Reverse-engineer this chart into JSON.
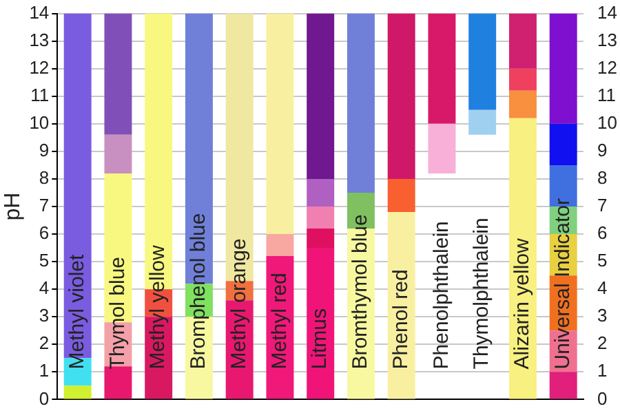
{
  "chart_data": {
    "type": "bar",
    "ylabel": "pH",
    "categories": [
      "Methyl violet",
      "Thymol blue",
      "Methyl yellow",
      "Bromphenol blue",
      "Methyl orange",
      "Methyl red",
      "Litmus",
      "Bromthymol blue",
      "Phenol red",
      "Phenolphthalein",
      "Thymolphthalein",
      "Alizarin yellow",
      "Universal Indicator"
    ],
    "ylim": [
      0,
      14
    ],
    "yticks": [
      0,
      1,
      2,
      3,
      4,
      5,
      6,
      7,
      8,
      9,
      10,
      11,
      12,
      13,
      14
    ],
    "y2lim": [
      0,
      14
    ],
    "y2ticks": [
      0,
      1,
      2,
      3,
      4,
      5,
      6,
      7,
      8,
      9,
      10,
      11,
      12,
      13,
      14
    ],
    "grid": "y",
    "legend": false,
    "series": [
      {
        "values": [
          0.5,
          1.2,
          3,
          3,
          3.6,
          5.2,
          5.5,
          6.2,
          6.8,
          1.8,
          0.9,
          10.2,
          1
        ],
        "base": [
          0,
          0,
          0,
          0,
          0,
          0,
          0,
          0,
          0,
          8.2,
          9.6,
          0,
          0
        ],
        "colors": [
          "#d0f030",
          "#e8186e",
          "#d81860",
          "#f8f8a0",
          "#e81870",
          "#f01878",
          "#f01478",
          "#f8f8a0",
          "#f8f0a0",
          "#f8b0d8",
          "#a0d0f0",
          "#f8f080",
          "#e0207a"
        ]
      },
      {
        "values": [
          1,
          1.6,
          1,
          1.2,
          0.7,
          0.8,
          0.7,
          1.3,
          1.2,
          4,
          3.5,
          1,
          1.5
        ],
        "base": [
          0.5,
          1.2,
          3,
          3,
          3.6,
          5.2,
          5.5,
          6.2,
          6.8,
          10,
          10.5,
          10.2,
          1
        ],
        "colors": [
          "#40e0f0",
          "#f4a0a8",
          "#f05040",
          "#80e060",
          "#f07040",
          "#f8a8a0",
          "#e01060",
          "#80c060",
          "#f86030",
          "#d81868",
          "#2080e0",
          "#f89040",
          "#f07090"
        ]
      },
      {
        "values": [
          12.5,
          5.4,
          10,
          9.8,
          9.7,
          8,
          0.8,
          6.5,
          6,
          null,
          null,
          0.8,
          2
        ],
        "base": [
          1.5,
          2.8,
          4,
          4.2,
          4.3,
          6,
          6.2,
          7.5,
          8,
          null,
          null,
          11.2,
          2.5
        ],
        "colors": [
          "#7a5ce0",
          "#f8f880",
          "#f8f880",
          "#7080d8",
          "#f0e8a0",
          "#f8f0a0",
          "#f080b0",
          "#7080d8",
          "#d01868",
          null,
          null,
          "#f04060",
          "#f07020"
        ]
      },
      {
        "values": [
          null,
          1.4,
          null,
          null,
          null,
          null,
          1,
          null,
          null,
          null,
          null,
          2,
          1.5
        ],
        "base": [
          null,
          8.2,
          null,
          null,
          null,
          null,
          7,
          null,
          null,
          null,
          null,
          12,
          4.5
        ],
        "colors": [
          null,
          "#c890c0",
          null,
          null,
          null,
          null,
          "#b060c0",
          null,
          null,
          null,
          null,
          "#d02070",
          "#e8d040"
        ]
      },
      {
        "values": [
          null,
          4.4,
          null,
          null,
          null,
          null,
          6,
          null,
          null,
          null,
          null,
          null,
          1
        ],
        "base": [
          null,
          9.6,
          null,
          null,
          null,
          null,
          8,
          null,
          null,
          null,
          null,
          null,
          6
        ],
        "colors": [
          null,
          "#8050b8",
          null,
          null,
          null,
          null,
          "#701890",
          null,
          null,
          null,
          null,
          null,
          "#80d080"
        ]
      },
      {
        "values": [
          null,
          null,
          null,
          null,
          null,
          null,
          null,
          null,
          null,
          null,
          null,
          null,
          1.5
        ],
        "base": [
          null,
          null,
          null,
          null,
          null,
          null,
          null,
          null,
          null,
          null,
          null,
          null,
          7
        ],
        "colors": [
          null,
          null,
          null,
          null,
          null,
          null,
          null,
          null,
          null,
          null,
          null,
          null,
          "#4070e0"
        ]
      },
      {
        "values": [
          null,
          null,
          null,
          null,
          null,
          null,
          null,
          null,
          null,
          null,
          null,
          null,
          1.5
        ],
        "base": [
          null,
          null,
          null,
          null,
          null,
          null,
          null,
          null,
          null,
          null,
          null,
          null,
          8.5
        ],
        "colors": [
          null,
          null,
          null,
          null,
          null,
          null,
          null,
          null,
          null,
          null,
          null,
          null,
          "#1010f0"
        ]
      },
      {
        "values": [
          null,
          null,
          null,
          null,
          null,
          null,
          null,
          null,
          null,
          null,
          null,
          null,
          4
        ],
        "base": [
          null,
          null,
          null,
          null,
          null,
          null,
          null,
          null,
          null,
          null,
          null,
          null,
          10
        ],
        "colors": [
          null,
          null,
          null,
          null,
          null,
          null,
          null,
          null,
          null,
          null,
          null,
          null,
          "#8010d0"
        ]
      }
    ]
  }
}
